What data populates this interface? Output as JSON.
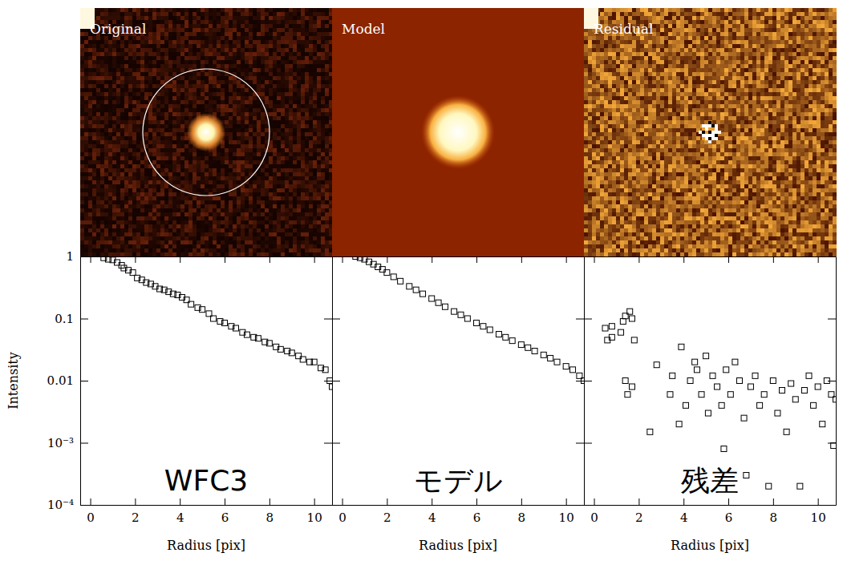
{
  "chart_data": [
    {
      "type": "scatter",
      "title": "Original",
      "annotations": [
        "WFC3"
      ],
      "xlabel": "Radius [pix]",
      "ylabel": "Intensity",
      "log": "y",
      "marker": "square",
      "xlim": [
        -0.45,
        10.8
      ],
      "ylim": [
        0.0001,
        1
      ],
      "xticks": [
        0,
        2,
        4,
        6,
        8,
        10
      ],
      "yticks": [
        {
          "value": 0.0001,
          "label": "10⁻⁴"
        },
        {
          "value": 0.001,
          "label": "10⁻³"
        },
        0.01,
        0.1,
        1
      ],
      "x": [
        0.6,
        0.8,
        1.0,
        1.2,
        1.4,
        1.5,
        1.7,
        1.9,
        2.1,
        2.3,
        2.5,
        2.7,
        2.9,
        3.1,
        3.3,
        3.5,
        3.7,
        3.9,
        4.1,
        4.3,
        4.5,
        4.8,
        5.0,
        5.3,
        5.5,
        5.8,
        6.0,
        6.3,
        6.5,
        6.8,
        7.0,
        7.3,
        7.5,
        7.8,
        8.0,
        8.3,
        8.5,
        8.8,
        9.0,
        9.3,
        9.5,
        9.8,
        10.0,
        10.3,
        10.5,
        10.7,
        10.8
      ],
      "values": [
        0.95,
        0.9,
        0.88,
        0.8,
        0.72,
        0.65,
        0.6,
        0.55,
        0.45,
        0.42,
        0.38,
        0.36,
        0.33,
        0.3,
        0.29,
        0.27,
        0.25,
        0.24,
        0.22,
        0.2,
        0.17,
        0.15,
        0.14,
        0.12,
        0.1,
        0.09,
        0.085,
        0.075,
        0.07,
        0.06,
        0.055,
        0.05,
        0.048,
        0.042,
        0.04,
        0.035,
        0.032,
        0.03,
        0.028,
        0.025,
        0.022,
        0.02,
        0.02,
        0.016,
        0.015,
        0.01,
        0.008
      ]
    },
    {
      "type": "scatter",
      "title": "Model",
      "annotations": [
        "モデル"
      ],
      "xlabel": "Radius [pix]",
      "log": "y",
      "marker": "square",
      "tick_labels": "x",
      "xlim": [
        -0.45,
        10.8
      ],
      "ylim": [
        0.0001,
        1
      ],
      "xticks": [
        0,
        2,
        4,
        6,
        8,
        10
      ],
      "yticks": [
        {
          "value": 0.0001,
          "label": "10⁻⁴"
        },
        {
          "value": 0.001,
          "label": "10⁻³"
        },
        0.01,
        0.1,
        1
      ],
      "x": [
        0.6,
        0.8,
        1.0,
        1.2,
        1.4,
        1.6,
        1.8,
        2.0,
        2.3,
        2.6,
        3.0,
        3.3,
        3.6,
        4.0,
        4.3,
        4.6,
        5.0,
        5.3,
        5.6,
        6.0,
        6.3,
        6.6,
        7.0,
        7.3,
        7.6,
        8.0,
        8.3,
        8.6,
        9.0,
        9.3,
        9.6,
        10.0,
        10.3,
        10.6,
        10.8
      ],
      "values": [
        1.0,
        0.95,
        0.9,
        0.82,
        0.75,
        0.68,
        0.62,
        0.55,
        0.47,
        0.4,
        0.33,
        0.29,
        0.25,
        0.21,
        0.18,
        0.155,
        0.13,
        0.115,
        0.1,
        0.085,
        0.075,
        0.066,
        0.056,
        0.05,
        0.044,
        0.038,
        0.034,
        0.03,
        0.026,
        0.023,
        0.02,
        0.017,
        0.015,
        0.012,
        0.01
      ]
    },
    {
      "type": "scatter",
      "title": "Residual",
      "annotations": [
        "残差"
      ],
      "xlabel": "Radius [pix]",
      "log": "y",
      "marker": "square",
      "tick_labels": "x",
      "xlim": [
        -0.45,
        10.8
      ],
      "ylim": [
        0.0001,
        1
      ],
      "xticks": [
        0,
        2,
        4,
        6,
        8,
        10
      ],
      "yticks": [
        {
          "value": 0.0001,
          "label": "10⁻⁴"
        },
        {
          "value": 0.001,
          "label": "10⁻³"
        },
        0.01,
        0.1,
        1
      ],
      "x": [
        0.5,
        0.6,
        0.8,
        0.8,
        1.2,
        1.3,
        1.4,
        1.6,
        1.7,
        1.8,
        1.4,
        1.5,
        1.7,
        2.5,
        2.8,
        3.4,
        3.5,
        3.8,
        3.9,
        4.1,
        4.3,
        4.5,
        4.6,
        4.8,
        5.0,
        5.1,
        5.3,
        5.5,
        5.7,
        5.8,
        5.9,
        6.1,
        6.3,
        6.5,
        6.7,
        6.8,
        7.0,
        7.2,
        7.4,
        7.6,
        7.8,
        8.0,
        8.2,
        8.4,
        8.6,
        8.8,
        9.0,
        9.2,
        9.4,
        9.6,
        9.8,
        10.0,
        10.2,
        10.4,
        10.6,
        10.7,
        10.8
      ],
      "values": [
        0.07,
        0.045,
        0.05,
        0.075,
        0.06,
        0.09,
        0.11,
        0.13,
        0.1,
        0.045,
        0.01,
        0.006,
        0.008,
        0.0015,
        0.018,
        0.006,
        0.012,
        0.002,
        0.035,
        0.004,
        0.01,
        0.02,
        0.015,
        0.006,
        0.025,
        0.003,
        0.012,
        0.008,
        0.004,
        0.0008,
        0.015,
        0.006,
        0.02,
        0.01,
        0.0025,
        0.0003,
        0.008,
        0.012,
        0.004,
        0.006,
        0.0002,
        0.01,
        0.003,
        0.007,
        0.0015,
        0.009,
        0.005,
        0.0002,
        0.007,
        0.012,
        0.004,
        0.008,
        0.002,
        0.01,
        0.006,
        0.0009,
        0.005
      ]
    }
  ]
}
